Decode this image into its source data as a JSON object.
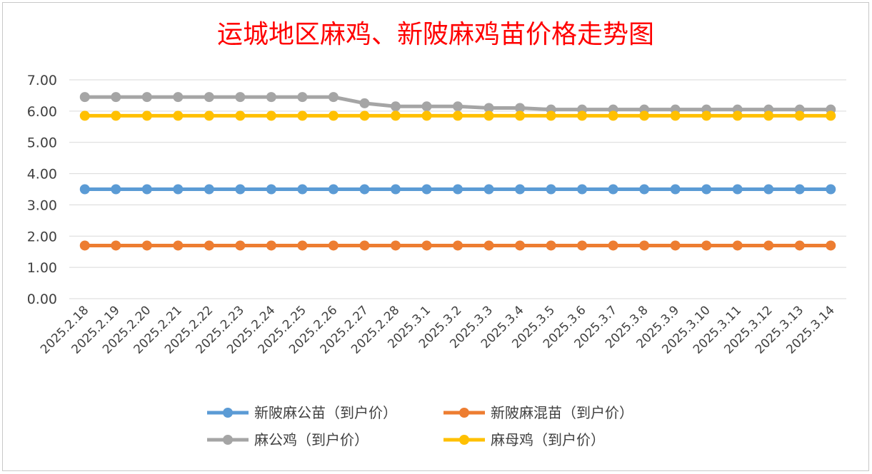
{
  "chart_data": {
    "type": "line",
    "title": "运城地区麻鸡、新陂麻鸡苗价格走势图",
    "xlabel": "",
    "ylabel": "",
    "ylim": [
      0,
      7
    ],
    "yticks": [
      "0.00",
      "1.00",
      "2.00",
      "3.00",
      "4.00",
      "5.00",
      "6.00",
      "7.00"
    ],
    "grid": true,
    "legend_position": "bottom",
    "categories": [
      "2025.2.18",
      "2025.2.19",
      "2025.2.20",
      "2025.2.21",
      "2025.2.22",
      "2025.2.23",
      "2025.2.24",
      "2025.2.25",
      "2025.2.26",
      "2025.2.27",
      "2025.2.28",
      "2025.3.1",
      "2025.3.2",
      "2025.3.3",
      "2025.3.4",
      "2025.3.5",
      "2025.3.6",
      "2025.3.7",
      "2025.3.8",
      "2025.3.9",
      "2025.3.10",
      "2025.3.11",
      "2025.3.12",
      "2025.3.13",
      "2025.3.14"
    ],
    "series": [
      {
        "name": "新陂麻公苗（到户价）",
        "color": "#5b9bd5",
        "values": [
          3.5,
          3.5,
          3.5,
          3.5,
          3.5,
          3.5,
          3.5,
          3.5,
          3.5,
          3.5,
          3.5,
          3.5,
          3.5,
          3.5,
          3.5,
          3.5,
          3.5,
          3.5,
          3.5,
          3.5,
          3.5,
          3.5,
          3.5,
          3.5,
          3.5
        ]
      },
      {
        "name": "新陂麻混苗（到户价）",
        "color": "#ed7d31",
        "values": [
          1.7,
          1.7,
          1.7,
          1.7,
          1.7,
          1.7,
          1.7,
          1.7,
          1.7,
          1.7,
          1.7,
          1.7,
          1.7,
          1.7,
          1.7,
          1.7,
          1.7,
          1.7,
          1.7,
          1.7,
          1.7,
          1.7,
          1.7,
          1.7,
          1.7
        ]
      },
      {
        "name": "麻公鸡（到户价）",
        "color": "#a5a5a5",
        "values": [
          6.45,
          6.45,
          6.45,
          6.45,
          6.45,
          6.45,
          6.45,
          6.45,
          6.45,
          6.25,
          6.15,
          6.15,
          6.15,
          6.1,
          6.1,
          6.05,
          6.05,
          6.05,
          6.05,
          6.05,
          6.05,
          6.05,
          6.05,
          6.05,
          6.05
        ]
      },
      {
        "name": "麻母鸡（到户价）",
        "color": "#ffc000",
        "values": [
          5.85,
          5.85,
          5.85,
          5.85,
          5.85,
          5.85,
          5.85,
          5.85,
          5.85,
          5.85,
          5.85,
          5.85,
          5.85,
          5.85,
          5.85,
          5.85,
          5.85,
          5.85,
          5.85,
          5.85,
          5.85,
          5.85,
          5.85,
          5.85,
          5.85
        ]
      }
    ]
  }
}
